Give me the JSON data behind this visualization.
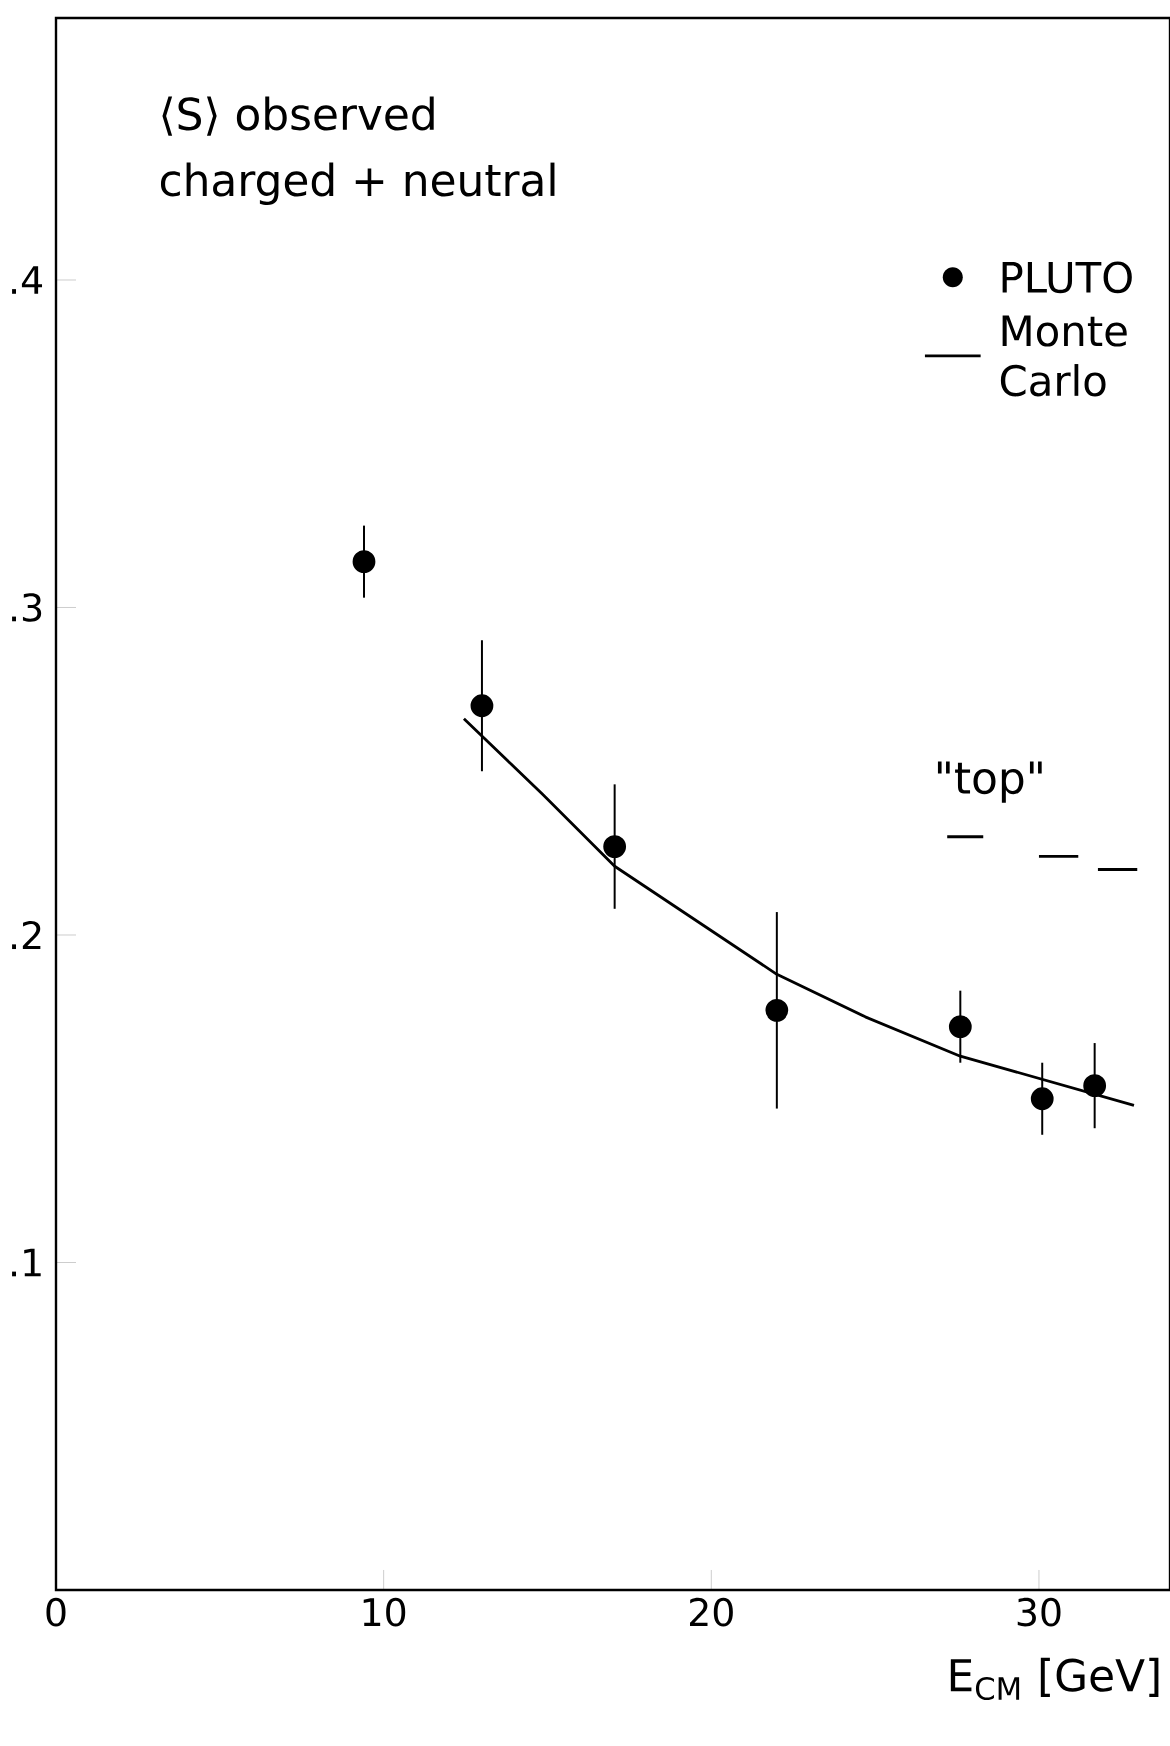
{
  "chart_data": {
    "type": "scatter",
    "annotations": [
      "⟨S⟩ observed",
      "charged + neutral"
    ],
    "xlabel": "E$_{CM}$ [GeV]",
    "xlim": [
      0,
      34
    ],
    "ylim": [
      0,
      0.48
    ],
    "xticks": [
      0,
      10,
      20,
      30
    ],
    "yticks": [
      {
        "value": 0.1,
        "label": ".1"
      },
      {
        "value": 0.2,
        "label": ".2"
      },
      {
        "value": 0.3,
        "label": ".3"
      },
      {
        "value": 0.4,
        "label": ".4"
      }
    ],
    "legend": "top right",
    "grid": false,
    "series": [
      {
        "name": "PLUTO",
        "marker": "circle",
        "color": "#000000",
        "x": [
          9.4,
          13.0,
          17.05,
          22.0,
          27.6,
          30.1,
          31.7
        ],
        "values": [
          0.314,
          0.27,
          0.227,
          0.177,
          0.172,
          0.15,
          0.154
        ],
        "errors": [
          0.011,
          0.02,
          0.019,
          0.03,
          0.011,
          0.011,
          0.013
        ]
      },
      {
        "name": "Monte Carlo",
        "type": "line",
        "marker": "none",
        "line_style": "solid",
        "color": "#000000",
        "x": [
          12.45,
          14.85,
          17.05,
          22.0,
          24.7,
          27.6,
          32.9
        ],
        "values": [
          0.266,
          0.243,
          0.221,
          0.188,
          0.175,
          0.163,
          0.148
        ]
      },
      {
        "name": "\"top\"",
        "type": "line",
        "marker": "none",
        "line_style": "solid",
        "color": "#000000",
        "x": [
          27.2,
          28.3,
          29.1,
          30.0,
          31.2,
          31.5,
          31.8,
          33.0
        ],
        "values": [
          0.23,
          0.23,
          null,
          0.224,
          0.224,
          null,
          0.22,
          0.22
        ]
      }
    ]
  }
}
